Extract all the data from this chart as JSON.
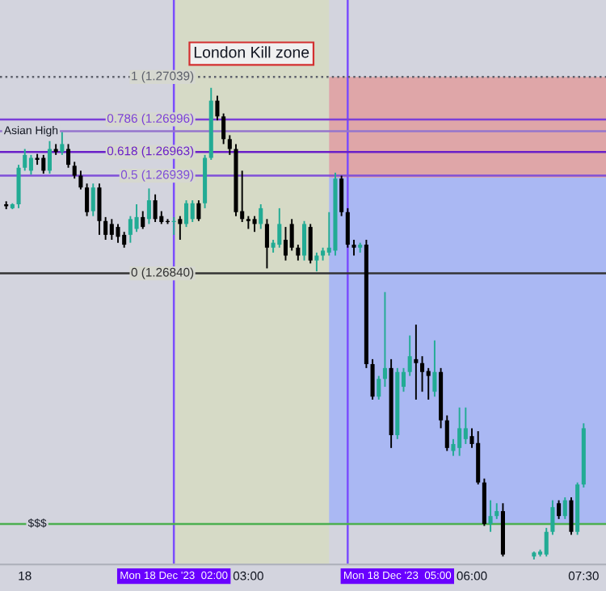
{
  "chart_data": {
    "type": "candlestick",
    "x": [
      "2023-12-17T23:45",
      "2023-12-17T23:50",
      "2023-12-17T23:55",
      "2023-12-18T00:00",
      "2023-12-18T00:05",
      "2023-12-18T00:10",
      "2023-12-18T00:15",
      "2023-12-18T00:20",
      "2023-12-18T00:25",
      "2023-12-18T00:30",
      "2023-12-18T00:35",
      "2023-12-18T00:40",
      "2023-12-18T00:45",
      "2023-12-18T00:50",
      "2023-12-18T00:55",
      "2023-12-18T01:00",
      "2023-12-18T01:05",
      "2023-12-18T01:10",
      "2023-12-18T01:15",
      "2023-12-18T01:20",
      "2023-12-18T01:25",
      "2023-12-18T01:30",
      "2023-12-18T01:35",
      "2023-12-18T01:40",
      "2023-12-18T01:45",
      "2023-12-18T01:50",
      "2023-12-18T01:55",
      "2023-12-18T02:00",
      "2023-12-18T02:05",
      "2023-12-18T02:10",
      "2023-12-18T02:15",
      "2023-12-18T02:20",
      "2023-12-18T02:25",
      "2023-12-18T02:30",
      "2023-12-18T02:35",
      "2023-12-18T02:40",
      "2023-12-18T02:45",
      "2023-12-18T02:50",
      "2023-12-18T02:55",
      "2023-12-18T03:00",
      "2023-12-18T03:05",
      "2023-12-18T03:10",
      "2023-12-18T03:15",
      "2023-12-18T03:20",
      "2023-12-18T03:25",
      "2023-12-18T03:30",
      "2023-12-18T03:35",
      "2023-12-18T03:40",
      "2023-12-18T03:45",
      "2023-12-18T03:50",
      "2023-12-18T03:55",
      "2023-12-18T04:00",
      "2023-12-18T04:05",
      "2023-12-18T04:10",
      "2023-12-18T04:15",
      "2023-12-18T04:20",
      "2023-12-18T04:25",
      "2023-12-18T04:30",
      "2023-12-18T04:35",
      "2023-12-18T04:40",
      "2023-12-18T04:45",
      "2023-12-18T04:50",
      "2023-12-18T04:55",
      "2023-12-18T05:00",
      "2023-12-18T05:05",
      "2023-12-18T05:10",
      "2023-12-18T05:15",
      "2023-12-18T05:20",
      "2023-12-18T05:25",
      "2023-12-18T05:30",
      "2023-12-18T05:35",
      "2023-12-18T05:40",
      "2023-12-18T05:45",
      "2023-12-18T05:50",
      "2023-12-18T05:55",
      "2023-12-18T06:00",
      "2023-12-18T06:05",
      "2023-12-18T06:10",
      "2023-12-18T06:15",
      "2023-12-18T06:20",
      "2023-12-18T06:25",
      "2023-12-18T06:50",
      "2023-12-18T06:55",
      "2023-12-18T07:00",
      "2023-12-18T07:05",
      "2023-12-18T07:10",
      "2023-12-18T07:15",
      "2023-12-18T07:20",
      "2023-12-18T07:25",
      "2023-12-18T07:30"
    ],
    "ohlc": [
      [
        1.2691,
        1.26913,
        1.26905,
        1.26908
      ],
      [
        1.26906,
        1.26911,
        1.26905,
        1.2691
      ],
      [
        1.2691,
        1.2695,
        1.26906,
        1.26947
      ],
      [
        1.26947,
        1.26966,
        1.26944,
        1.2696
      ],
      [
        1.26944,
        1.2696,
        1.2694,
        1.26957
      ],
      [
        1.26957,
        1.26961,
        1.2695,
        1.26955
      ],
      [
        1.26957,
        1.2696,
        1.26941,
        1.26944
      ],
      [
        1.26944,
        1.26974,
        1.26941,
        1.26966
      ],
      [
        1.26966,
        1.26971,
        1.2696,
        1.26963
      ],
      [
        1.26963,
        1.26983,
        1.2696,
        1.26971
      ],
      [
        1.26966,
        1.26971,
        1.26947,
        1.2695
      ],
      [
        1.26949,
        1.26953,
        1.26936,
        1.26939
      ],
      [
        1.26939,
        1.26944,
        1.26925,
        1.26927
      ],
      [
        1.26927,
        1.26931,
        1.26898,
        1.26902
      ],
      [
        1.26903,
        1.26931,
        1.26898,
        1.26927
      ],
      [
        1.26927,
        1.26931,
        1.26879,
        1.26893
      ],
      [
        1.26893,
        1.26897,
        1.26874,
        1.26879
      ],
      [
        1.2689,
        1.26895,
        1.26874,
        1.26879
      ],
      [
        1.26887,
        1.2689,
        1.26871,
        1.26877
      ],
      [
        1.26879,
        1.26882,
        1.26866,
        1.26869
      ],
      [
        1.26879,
        1.26898,
        1.26871,
        1.26895
      ],
      [
        1.26885,
        1.2691,
        1.26882,
        1.26897
      ],
      [
        1.26897,
        1.26903,
        1.26885,
        1.26887
      ],
      [
        1.26895,
        1.26926,
        1.2689,
        1.26914
      ],
      [
        1.26914,
        1.2692,
        1.26892,
        1.26895
      ],
      [
        1.26898,
        1.26903,
        1.2689,
        1.26892
      ],
      [
        1.26893,
        1.26895,
        1.2689,
        1.26892
      ],
      [
        1.26892,
        1.26897,
        1.26879,
        1.26893
      ],
      [
        1.26895,
        1.26898,
        1.26874,
        1.2689
      ],
      [
        1.2689,
        1.26914,
        1.26887,
        1.26911
      ],
      [
        1.26895,
        1.26914,
        1.26892,
        1.26911
      ],
      [
        1.26911,
        1.26914,
        1.26893,
        1.26895
      ],
      [
        1.26911,
        1.2696,
        1.26906,
        1.26957
      ],
      [
        1.26957,
        1.27028,
        1.26955,
        1.27015
      ],
      [
        1.27015,
        1.2702,
        1.26995,
        1.26999
      ],
      [
        1.26999,
        1.27002,
        1.26971,
        1.26976
      ],
      [
        1.26976,
        1.2698,
        1.2696,
        1.26966
      ],
      [
        1.26966,
        1.26971,
        1.26898,
        1.26902
      ],
      [
        1.26903,
        1.26944,
        1.26892,
        1.26895
      ],
      [
        1.26895,
        1.26898,
        1.26885,
        1.26893
      ],
      [
        1.26895,
        1.26898,
        1.26882,
        1.2689
      ],
      [
        1.2689,
        1.2691,
        1.26885,
        1.26906
      ],
      [
        1.2689,
        1.26895,
        1.26845,
        1.26866
      ],
      [
        1.26866,
        1.26874,
        1.26861,
        1.26871
      ],
      [
        1.26869,
        1.26906,
        1.26866,
        1.2689
      ],
      [
        1.26874,
        1.26887,
        1.26853,
        1.26858
      ],
      [
        1.2689,
        1.26895,
        1.26863,
        1.26866
      ],
      [
        1.26866,
        1.26869,
        1.26853,
        1.26858
      ],
      [
        1.26858,
        1.26893,
        1.26853,
        1.2689
      ],
      [
        1.26887,
        1.2689,
        1.2685,
        1.26853
      ],
      [
        1.26853,
        1.26861,
        1.26842,
        1.26858
      ],
      [
        1.26858,
        1.26866,
        1.26853,
        1.26863
      ],
      [
        1.26861,
        1.26902,
        1.26858,
        1.26866
      ],
      [
        1.26863,
        1.26942,
        1.26858,
        1.26936
      ],
      [
        1.26936,
        1.26939,
        1.26898,
        1.26902
      ],
      [
        1.26902,
        1.26906,
        1.26866,
        1.26869
      ],
      [
        1.26869,
        1.26874,
        1.26858,
        1.26866
      ],
      [
        1.26866,
        1.26871,
        1.26861,
        1.26869
      ],
      [
        1.26869,
        1.26874,
        1.26744,
        1.26748
      ],
      [
        1.26748,
        1.26753,
        1.26712,
        1.26715
      ],
      [
        1.26715,
        1.26736,
        1.26712,
        1.26733
      ],
      [
        1.26733,
        1.26821,
        1.26725,
        1.26744
      ],
      [
        1.26744,
        1.26753,
        1.26663,
        1.26676
      ],
      [
        1.26676,
        1.26744,
        1.26672,
        1.2674
      ],
      [
        1.26725,
        1.26744,
        1.2672,
        1.2674
      ],
      [
        1.2674,
        1.26777,
        1.26736,
        1.26756
      ],
      [
        1.26753,
        1.26788,
        1.26712,
        1.26749
      ],
      [
        1.26749,
        1.26756,
        1.2672,
        1.2674
      ],
      [
        1.26741,
        1.26744,
        1.26712,
        1.26736
      ],
      [
        1.2672,
        1.26772,
        1.26715,
        1.2674
      ],
      [
        1.2674,
        1.26744,
        1.26683,
        1.26691
      ],
      [
        1.26691,
        1.26696,
        1.2666,
        1.26663
      ],
      [
        1.2666,
        1.26672,
        1.26655,
        1.26667
      ],
      [
        1.26663,
        1.26704,
        1.26655,
        1.26683
      ],
      [
        1.26672,
        1.26704,
        1.26667,
        1.26683
      ],
      [
        1.26675,
        1.26683,
        1.26663,
        1.26667
      ],
      [
        1.26668,
        1.2668,
        1.26626,
        1.26628
      ],
      [
        1.26628,
        1.26632,
        1.26584,
        1.26586
      ],
      [
        1.26586,
        1.2661,
        1.26578,
        1.26594
      ],
      [
        1.26594,
        1.26607,
        1.26591,
        1.26599
      ],
      [
        1.26599,
        1.26607,
        1.26553,
        1.26555
      ],
      [
        1.26553,
        1.26558,
        1.2655,
        1.26557
      ],
      [
        1.26555,
        1.2656,
        1.26553,
        1.26558
      ],
      [
        1.26555,
        1.26582,
        1.26553,
        1.26578
      ],
      [
        1.26578,
        1.2661,
        1.26575,
        1.26603
      ],
      [
        1.26607,
        1.2661,
        1.26591,
        1.26594
      ],
      [
        1.26594,
        1.26613,
        1.26591,
        1.2661
      ],
      [
        1.2661,
        1.26613,
        1.26575,
        1.26578
      ],
      [
        1.26578,
        1.26628,
        1.26575,
        1.26626
      ],
      [
        1.26626,
        1.26688,
        1.26623,
        1.26683
      ]
    ],
    "colors": [
      "#000000",
      "#22ab94",
      "#22ab94",
      "#22ab94",
      "#22ab94",
      "#000000",
      "#000000",
      "#22ab94",
      "#000000",
      "#22ab94",
      "#000000",
      "#000000",
      "#000000",
      "#000000",
      "#22ab94",
      "#000000",
      "#000000",
      "#000000",
      "#000000",
      "#000000",
      "#22ab94",
      "#22ab94",
      "#000000",
      "#22ab94",
      "#000000",
      "#000000",
      "#000000",
      "#22ab94",
      "#000000",
      "#22ab94",
      "#22ab94",
      "#000000",
      "#22ab94",
      "#22ab94",
      "#000000",
      "#000000",
      "#000000",
      "#000000",
      "#000000",
      "#000000",
      "#000000",
      "#22ab94",
      "#000000",
      "#22ab94",
      "#22ab94",
      "#000000",
      "#000000",
      "#000000",
      "#22ab94",
      "#000000",
      "#22ab94",
      "#22ab94",
      "#22ab94",
      "#22ab94",
      "#000000",
      "#000000",
      "#000000",
      "#22ab94",
      "#000000",
      "#000000",
      "#22ab94",
      "#22ab94",
      "#000000",
      "#22ab94",
      "#22ab94",
      "#22ab94",
      "#000000",
      "#000000",
      "#000000",
      "#22ab94",
      "#000000",
      "#000000",
      "#22ab94",
      "#22ab94",
      "#22ab94",
      "#000000",
      "#000000",
      "#000000",
      "#22ab94",
      "#22ab94",
      "#000000",
      "#22ab94",
      "#22ab94",
      "#22ab94",
      "#22ab94",
      "#000000",
      "#22ab94",
      "#000000",
      "#22ab94",
      "#22ab94"
    ],
    "xlim": [
      "2023-12-17T23:40",
      "2023-12-18T07:48"
    ],
    "ylim": [
      1.26545,
      1.27117
    ],
    "xticks": [
      {
        "value": "2023-12-18T00:00",
        "label": "18"
      },
      {
        "value": "2023-12-18T02:00",
        "label": "Mon 18 Dec '23  02:00"
      },
      {
        "value": "2023-12-18T03:00",
        "label": "03:00"
      },
      {
        "value": "2023-12-18T05:00",
        "label": "Mon 18 Dec '23  05:00"
      },
      {
        "value": "2023-12-18T06:00",
        "label": "06:00"
      },
      {
        "value": "2023-12-18T07:30",
        "label": "07:30"
      }
    ],
    "tick_labels": "x",
    "grid": false,
    "bands": [
      {
        "axis": "x",
        "from": "2023-12-18T02:00",
        "to": "2023-12-18T04:05",
        "label": "London Kill zone",
        "color": "#d6dac6"
      },
      {
        "axis": "y",
        "from": 1.26937,
        "to": 1.27039,
        "color": "#dfa6a8"
      },
      {
        "axis": "y",
        "from": 1.26586,
        "to": 1.26937,
        "color": "#aab8f3"
      }
    ],
    "ref_lines": [
      {
        "axis": "x",
        "value": "2023-12-18T02:00",
        "color": "#7b4dff",
        "line_style": "solid"
      },
      {
        "axis": "x",
        "value": "2023-12-18T04:20",
        "color": "#7b4dff",
        "line_style": "solid"
      },
      {
        "axis": "y",
        "value": 1.27039,
        "label": "1 (1.27039)",
        "color": "#5d606b",
        "line_style": "dotted"
      },
      {
        "axis": "y",
        "value": 1.26996,
        "label": "0.786 (1.26996)",
        "color": "#7b3fd8",
        "line_style": "solid"
      },
      {
        "axis": "y",
        "value": 1.26963,
        "label": "0.618 (1.26963)",
        "color": "#6a1fc8",
        "line_style": "solid"
      },
      {
        "axis": "y",
        "value": 1.26939,
        "label": "0.5 (1.26939)",
        "color": "#7f4fd8",
        "line_style": "solid"
      },
      {
        "axis": "y",
        "value": 1.2684,
        "label": "0 (1.26840)",
        "color": "#333333",
        "line_style": "solid"
      },
      {
        "axis": "y",
        "value": 1.26984,
        "color": "#9575cd",
        "line_style": "solid"
      },
      {
        "axis": "y",
        "value": 1.26586,
        "color": "#4caf50",
        "line_style": "solid"
      }
    ],
    "annotations": [
      {
        "text": "Asian High",
        "x": "2023-12-18T00:05",
        "y": 1.26984
      },
      {
        "text": "$$$",
        "x": "2023-12-18T00:10",
        "y": 1.26586
      }
    ]
  }
}
